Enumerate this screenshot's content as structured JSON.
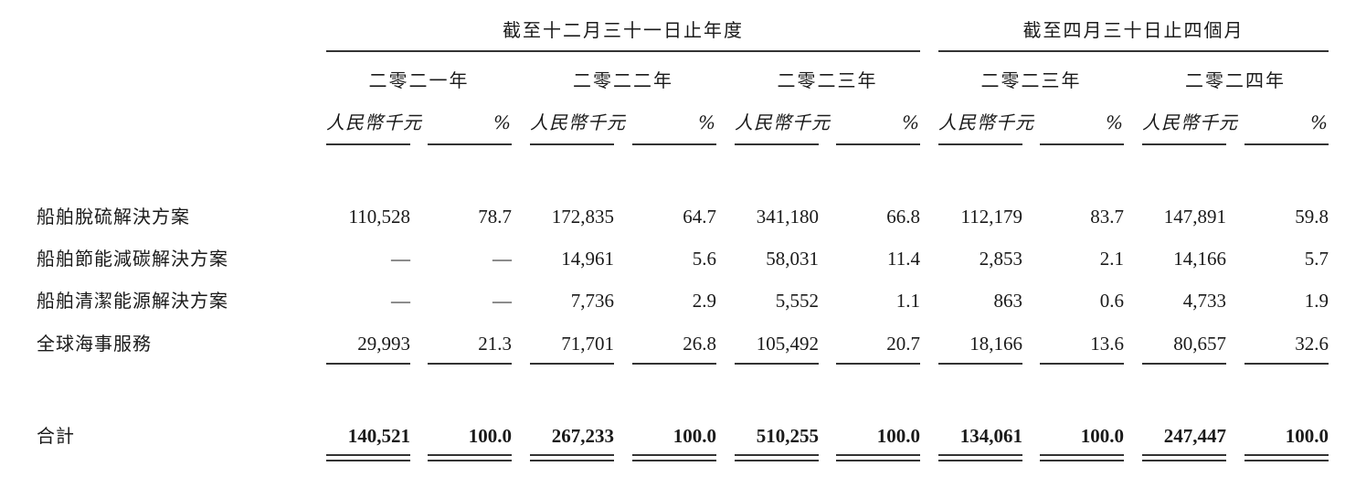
{
  "header": {
    "group1": "截至十二月三十一日止年度",
    "group2": "截至四月三十日止四個月",
    "years": [
      "二零二一年",
      "二零二二年",
      "二零二三年",
      "二零二三年",
      "二零二四年"
    ],
    "unit_amount": "人民幣千元",
    "unit_pct": "%"
  },
  "rows": [
    {
      "label": "船舶脫硫解決方案",
      "values": [
        "110,528",
        "78.7",
        "172,835",
        "64.7",
        "341,180",
        "66.8",
        "112,179",
        "83.7",
        "147,891",
        "59.8"
      ]
    },
    {
      "label": "船舶節能減碳解決方案",
      "values": [
        "—",
        "—",
        "14,961",
        "5.6",
        "58,031",
        "11.4",
        "2,853",
        "2.1",
        "14,166",
        "5.7"
      ]
    },
    {
      "label": "船舶清潔能源解決方案",
      "values": [
        "—",
        "—",
        "7,736",
        "2.9",
        "5,552",
        "1.1",
        "863",
        "0.6",
        "4,733",
        "1.9"
      ]
    },
    {
      "label": "全球海事服務",
      "values": [
        "29,993",
        "21.3",
        "71,701",
        "26.8",
        "105,492",
        "20.7",
        "18,166",
        "13.6",
        "80,657",
        "32.6"
      ]
    }
  ],
  "total": {
    "label": "合計",
    "values": [
      "140,521",
      "100.0",
      "267,233",
      "100.0",
      "510,255",
      "100.0",
      "134,061",
      "100.0",
      "247,447",
      "100.0"
    ]
  }
}
